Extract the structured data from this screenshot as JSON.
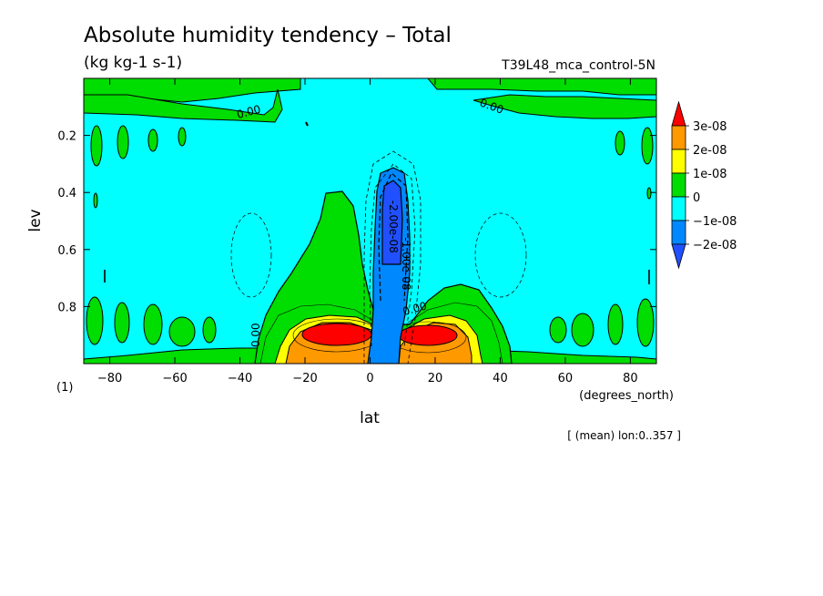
{
  "chart_data": {
    "type": "heatmap",
    "title": "Absolute humidity tendency – Total",
    "units": "(kg kg-1 s-1)",
    "run_label": "T39L48_mca_control-5N",
    "xlabel": "lat",
    "xunits": "(degrees_north)",
    "ylabel": "lev",
    "yunits": "(1)",
    "averaging_note": "[ (mean) lon:0..357 ]",
    "xlim": [
      -88,
      88
    ],
    "ylim": [
      0.0,
      1.0
    ],
    "y_inverted": true,
    "x_ticks": [
      -80,
      -60,
      -40,
      -20,
      0,
      20,
      40,
      60,
      80
    ],
    "x_tick_labels": [
      "−80",
      "−60",
      "−40",
      "−20",
      "0",
      "20",
      "40",
      "60",
      "80"
    ],
    "y_ticks": [
      0.2,
      0.4,
      0.6,
      0.8
    ],
    "y_tick_labels": [
      "0.2",
      "0.4",
      "0.6",
      "0.8"
    ],
    "contour_labels": [
      {
        "text": "0.00",
        "lat": -37,
        "lev": 0.13,
        "rot": -15
      },
      {
        "text": "0.00",
        "lat": 37,
        "lev": 0.11,
        "rot": 20
      },
      {
        "text": "0.00",
        "lat": -34,
        "lev": 0.9,
        "rot": -90
      },
      {
        "text": "-2.00e-08",
        "lat": 6,
        "lev": 0.52,
        "rot": 90
      },
      {
        "text": "-1.00e-08",
        "lat": 10,
        "lev": 0.65,
        "rot": 90
      },
      {
        "text": "0.00",
        "lat": 14,
        "lev": 0.82,
        "rot": -15
      }
    ],
    "legend": {
      "placement": "right",
      "levels": [
        "3e-08",
        "2e-08",
        "1e-08",
        "0",
        "−1e-08",
        "−2e-08"
      ],
      "colors": [
        "#ff0000",
        "#ff9900",
        "#ffff00",
        "#00dd00",
        "#00ffff",
        "#0088ff",
        "#2050ff"
      ]
    },
    "colors": {
      "very_negative": "#2050ff",
      "negative": "#0088ff",
      "slightly_negative": "#00ffff",
      "slightly_positive": "#00dd00",
      "positive": "#ffff00",
      "more_positive": "#ff9900",
      "strong_positive": "#ff0000"
    },
    "regions": [
      {
        "level": "slightly_positive",
        "lat": [
          -88,
          -18
        ],
        "lev": [
          0.0,
          0.06
        ]
      },
      {
        "level": "slightly_positive",
        "lat": [
          22,
          88
        ],
        "lev": [
          0.0,
          0.06
        ]
      },
      {
        "level": "slightly_positive",
        "lat": [
          -18,
          45
        ],
        "lev": [
          0.38,
          1.0
        ]
      },
      {
        "level": "positive",
        "lat": [
          -28,
          30
        ],
        "lev": [
          0.82,
          0.98
        ]
      },
      {
        "level": "strong_positive",
        "lat": [
          -22,
          4
        ],
        "lev": [
          0.84,
          0.94
        ]
      },
      {
        "level": "strong_positive",
        "lat": [
          10,
          30
        ],
        "lev": [
          0.85,
          0.93
        ]
      },
      {
        "level": "negative",
        "lat": [
          -2,
          14
        ],
        "lev": [
          0.3,
          0.98
        ]
      },
      {
        "level": "very_negative",
        "lat": [
          2,
          10
        ],
        "lev": [
          0.4,
          0.6
        ]
      }
    ]
  }
}
